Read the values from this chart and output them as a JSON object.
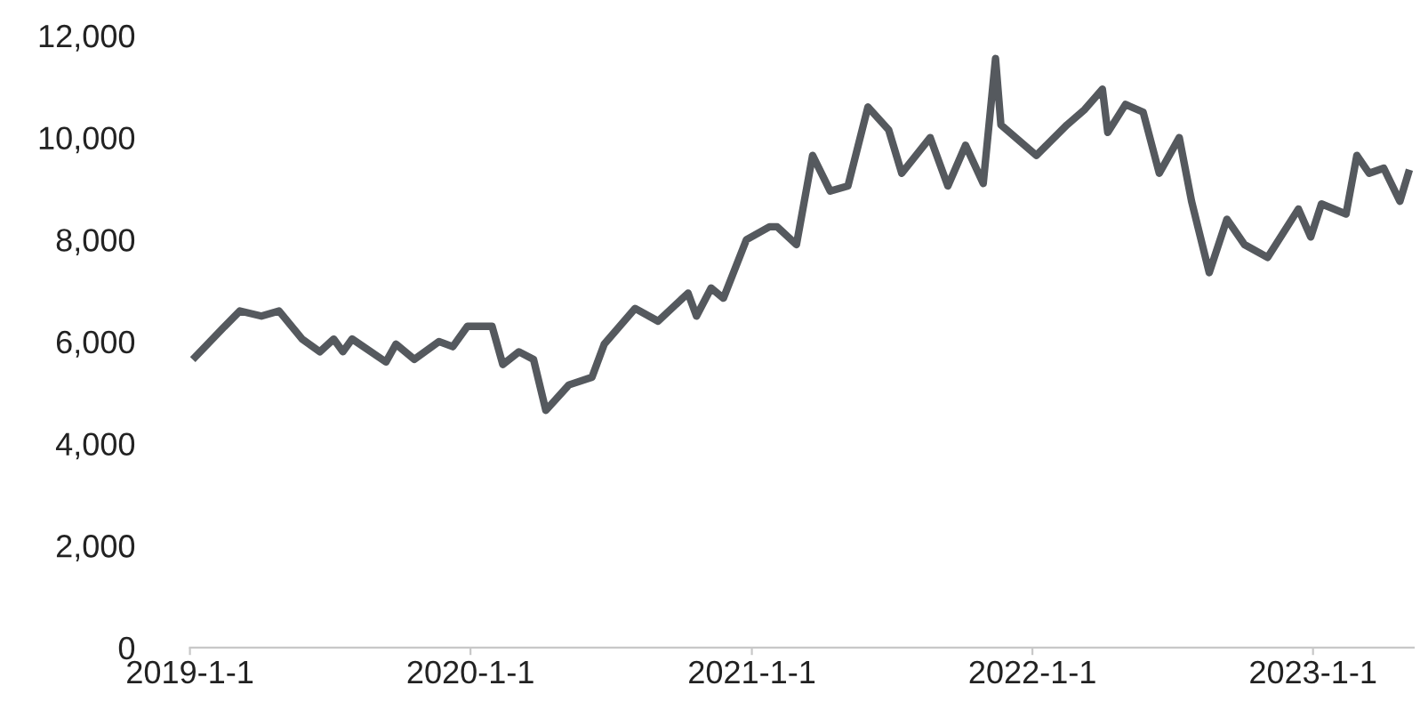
{
  "chart_data": {
    "type": "line",
    "x": [
      "2019-01-08",
      "2019-02-12",
      "2019-03-07",
      "2019-04-04",
      "2019-04-27",
      "2019-05-27",
      "2019-06-19",
      "2019-07-07",
      "2019-07-19",
      "2019-07-31",
      "2019-09-13",
      "2019-09-26",
      "2019-10-20",
      "2019-11-21",
      "2019-12-09",
      "2019-12-28",
      "2020-01-29",
      "2020-02-12",
      "2020-03-04",
      "2020-03-23",
      "2020-04-08",
      "2020-05-08",
      "2020-06-07",
      "2020-06-23",
      "2020-08-02",
      "2020-09-01",
      "2020-10-10",
      "2020-10-21",
      "2020-11-09",
      "2020-11-25",
      "2020-12-25",
      "2021-01-24",
      "2021-02-03",
      "2021-02-28",
      "2021-03-21",
      "2021-04-13",
      "2021-05-06",
      "2021-06-01",
      "2021-06-28",
      "2021-07-15",
      "2021-08-21",
      "2021-09-13",
      "2021-10-06",
      "2021-10-29",
      "2021-11-14",
      "2021-11-21",
      "2022-01-06",
      "2022-02-15",
      "2022-03-10",
      "2022-04-02",
      "2022-04-09",
      "2022-05-02",
      "2022-05-25",
      "2022-06-15",
      "2022-07-11",
      "2022-07-27",
      "2022-08-19",
      "2022-09-11",
      "2022-10-04",
      "2022-11-03",
      "2022-12-13",
      "2022-12-29",
      "2023-01-12",
      "2023-02-13",
      "2023-02-27",
      "2023-03-15",
      "2023-04-03",
      "2023-04-24",
      "2023-05-05"
    ],
    "series": [
      {
        "color": "#55595e",
        "values": [
          5700,
          6250,
          6600,
          6500,
          6600,
          6050,
          5800,
          6050,
          5800,
          6050,
          5600,
          5950,
          5650,
          6000,
          5900,
          6300,
          6300,
          5550,
          5800,
          5650,
          4650,
          5150,
          5300,
          5950,
          6650,
          6400,
          6950,
          6500,
          7050,
          6850,
          8000,
          8250,
          8250,
          7900,
          9650,
          8950,
          9050,
          10600,
          10150,
          9300,
          10000,
          9050,
          9850,
          9100,
          11550,
          10250,
          9650,
          10250,
          10550,
          10950,
          10100,
          10650,
          10500,
          9300,
          10000,
          8750,
          7350,
          8400,
          7900,
          7650,
          8600,
          8050,
          8700,
          8500,
          9650,
          9300,
          9400,
          8750,
          9300
        ]
      }
    ],
    "xlim": [
      "2019-01-01",
      "2023-05-12"
    ],
    "xticks": [
      {
        "value": "2019-01-01",
        "label": "2019-1-1"
      },
      {
        "value": "2020-01-01",
        "label": "2020-1-1"
      },
      {
        "value": "2021-01-01",
        "label": "2021-1-1"
      },
      {
        "value": "2022-01-01",
        "label": "2022-1-1"
      },
      {
        "value": "2023-01-01",
        "label": "2023-1-1"
      }
    ],
    "ylim": [
      0,
      12000
    ],
    "yticks": [
      {
        "value": 0,
        "label": "0"
      },
      {
        "value": 2000,
        "label": "2,000"
      },
      {
        "value": 4000,
        "label": "4,000"
      },
      {
        "value": 6000,
        "label": "6,000"
      },
      {
        "value": 8000,
        "label": "8,000"
      },
      {
        "value": 10000,
        "label": "10,000"
      },
      {
        "value": 12000,
        "label": "12,000"
      }
    ],
    "grid": false,
    "legend": false,
    "marker": "none",
    "line_style": "solid"
  }
}
